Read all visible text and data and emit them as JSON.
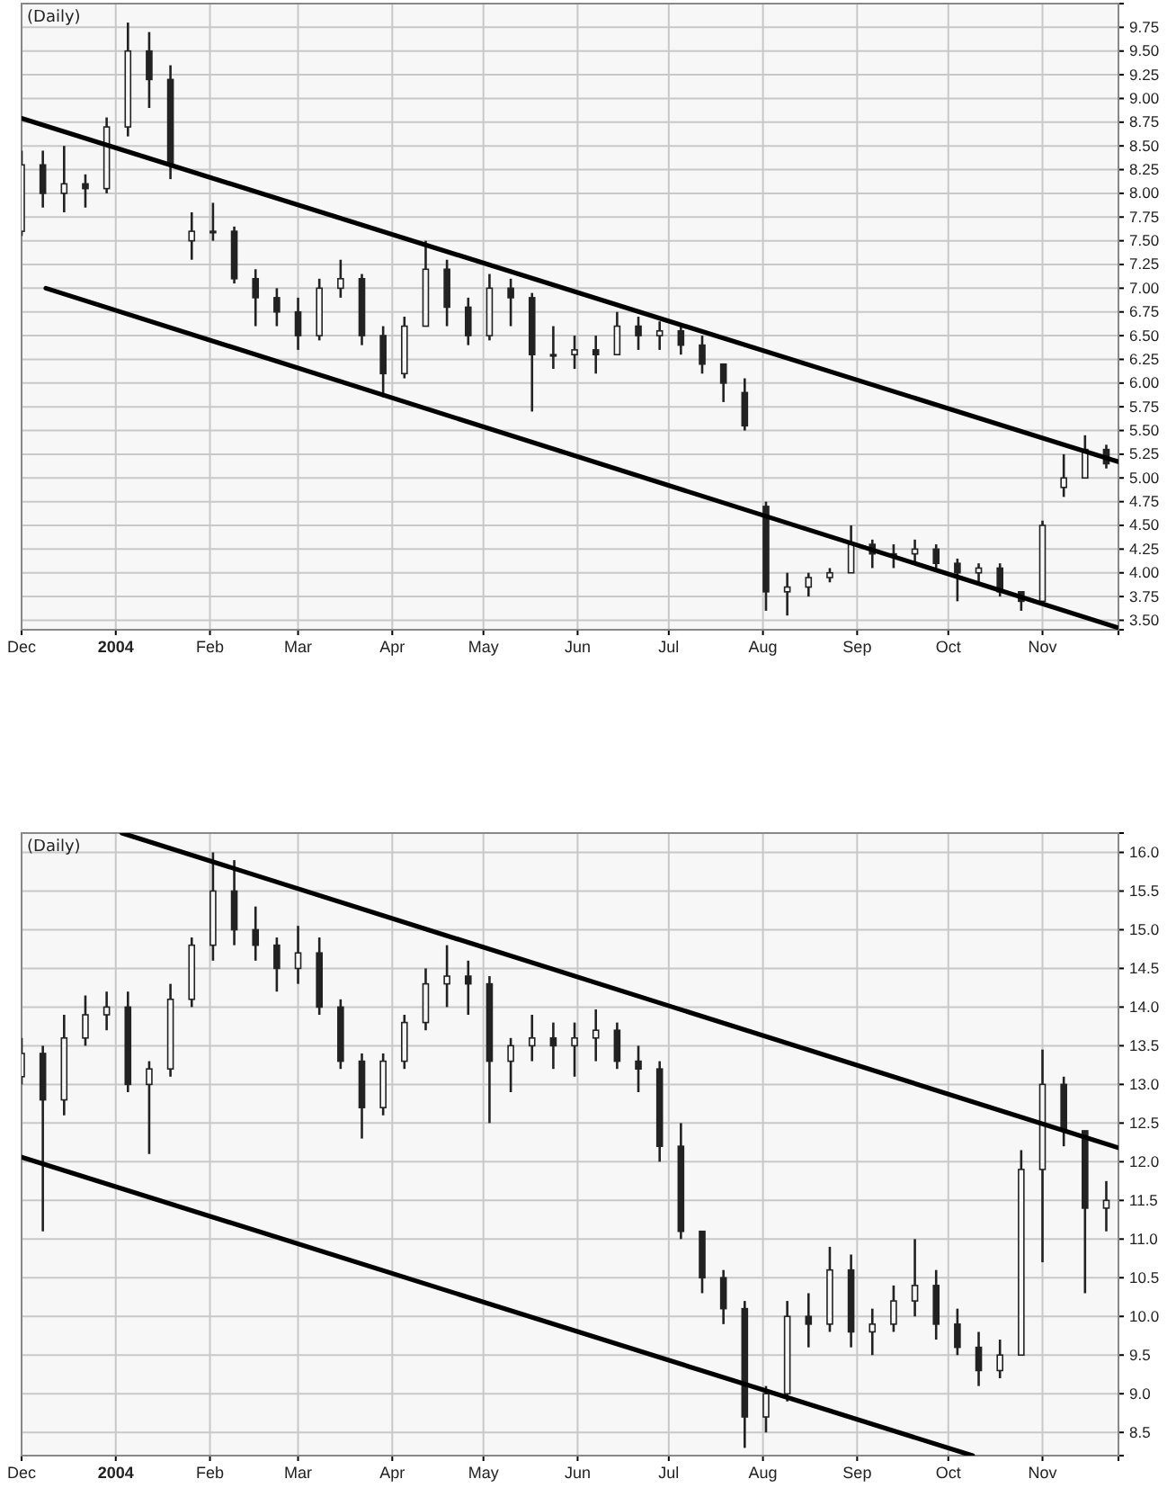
{
  "chart_data": [
    {
      "type": "candlestick",
      "title": "(Daily)",
      "grid": true,
      "xlim": [
        "2003-12-01",
        "2004-11-26"
      ],
      "ylim": [
        3.4,
        10.0
      ],
      "xticks": [
        {
          "value": "2003-12-01",
          "label": "Dec"
        },
        {
          "value": "2004-01-01",
          "label": "2004"
        },
        {
          "value": "2004-02-01",
          "label": "Feb"
        },
        {
          "value": "2004-03-01",
          "label": "Mar"
        },
        {
          "value": "2004-04-01",
          "label": "Apr"
        },
        {
          "value": "2004-05-01",
          "label": "May"
        },
        {
          "value": "2004-06-01",
          "label": "Jun"
        },
        {
          "value": "2004-07-01",
          "label": "Jul"
        },
        {
          "value": "2004-08-01",
          "label": "Aug"
        },
        {
          "value": "2004-09-01",
          "label": "Sep"
        },
        {
          "value": "2004-10-01",
          "label": "Oct"
        },
        {
          "value": "2004-11-01",
          "label": "Nov"
        }
      ],
      "yticks": [
        {
          "value": 3.5,
          "label": "3.50"
        },
        {
          "value": 3.75,
          "label": "3.75"
        },
        {
          "value": 4.0,
          "label": "4.00"
        },
        {
          "value": 4.25,
          "label": "4.25"
        },
        {
          "value": 4.5,
          "label": "4.50"
        },
        {
          "value": 4.75,
          "label": "4.75"
        },
        {
          "value": 5.0,
          "label": "5.00"
        },
        {
          "value": 5.25,
          "label": "5.25"
        },
        {
          "value": 5.5,
          "label": "5.50"
        },
        {
          "value": 5.75,
          "label": "5.75"
        },
        {
          "value": 6.0,
          "label": "6.00"
        },
        {
          "value": 6.25,
          "label": "6.25"
        },
        {
          "value": 6.5,
          "label": "6.50"
        },
        {
          "value": 6.75,
          "label": "6.75"
        },
        {
          "value": 7.0,
          "label": "7.00"
        },
        {
          "value": 7.25,
          "label": "7.25"
        },
        {
          "value": 7.5,
          "label": "7.50"
        },
        {
          "value": 7.75,
          "label": "7.75"
        },
        {
          "value": 8.0,
          "label": "8.00"
        },
        {
          "value": 8.25,
          "label": "8.25"
        },
        {
          "value": 8.5,
          "label": "8.50"
        },
        {
          "value": 8.75,
          "label": "8.75"
        },
        {
          "value": 9.0,
          "label": "9.00"
        },
        {
          "value": 9.25,
          "label": "9.25"
        },
        {
          "value": 9.5,
          "label": "9.50"
        },
        {
          "value": 9.75,
          "label": "9.75"
        }
      ],
      "x": [
        "2003-12-01",
        "2003-12-08",
        "2003-12-15",
        "2003-12-22",
        "2003-12-29",
        "2004-01-05",
        "2004-01-12",
        "2004-01-19",
        "2004-01-26",
        "2004-02-02",
        "2004-02-09",
        "2004-02-16",
        "2004-02-23",
        "2004-03-01",
        "2004-03-08",
        "2004-03-15",
        "2004-03-22",
        "2004-03-29",
        "2004-04-05",
        "2004-04-12",
        "2004-04-19",
        "2004-04-26",
        "2004-05-03",
        "2004-05-10",
        "2004-05-17",
        "2004-05-24",
        "2004-05-31",
        "2004-06-07",
        "2004-06-14",
        "2004-06-21",
        "2004-06-28",
        "2004-07-05",
        "2004-07-12",
        "2004-07-19",
        "2004-07-26",
        "2004-08-02",
        "2004-08-09",
        "2004-08-16",
        "2004-08-23",
        "2004-08-30",
        "2004-09-06",
        "2004-09-13",
        "2004-09-20",
        "2004-09-27",
        "2004-10-04",
        "2004-10-11",
        "2004-10-18",
        "2004-10-25",
        "2004-11-01",
        "2004-11-08",
        "2004-11-15",
        "2004-11-22"
      ],
      "ohlc": [
        [
          7.6,
          8.45,
          7.55,
          8.3
        ],
        [
          8.3,
          8.45,
          7.85,
          8.0
        ],
        [
          8.0,
          8.5,
          7.8,
          8.1
        ],
        [
          8.1,
          8.2,
          7.85,
          8.05
        ],
        [
          8.05,
          8.8,
          8.0,
          8.7
        ],
        [
          8.7,
          9.8,
          8.6,
          9.5
        ],
        [
          9.5,
          9.7,
          8.9,
          9.2
        ],
        [
          9.2,
          9.35,
          8.15,
          8.3
        ],
        [
          7.5,
          7.8,
          7.3,
          7.6
        ],
        [
          7.6,
          7.9,
          7.5,
          7.6
        ],
        [
          7.6,
          7.65,
          7.05,
          7.1
        ],
        [
          7.1,
          7.2,
          6.6,
          6.9
        ],
        [
          6.9,
          7.0,
          6.6,
          6.75
        ],
        [
          6.75,
          6.9,
          6.35,
          6.5
        ],
        [
          6.5,
          7.1,
          6.45,
          7.0
        ],
        [
          7.0,
          7.3,
          6.9,
          7.1
        ],
        [
          7.1,
          7.15,
          6.4,
          6.5
        ],
        [
          6.5,
          6.6,
          5.85,
          6.1
        ],
        [
          6.1,
          6.7,
          6.05,
          6.6
        ],
        [
          6.6,
          7.5,
          6.6,
          7.2
        ],
        [
          7.2,
          7.3,
          6.6,
          6.8
        ],
        [
          6.8,
          6.9,
          6.4,
          6.5
        ],
        [
          6.5,
          7.15,
          6.45,
          7.0
        ],
        [
          7.0,
          7.1,
          6.6,
          6.9
        ],
        [
          6.9,
          6.95,
          5.7,
          6.3
        ],
        [
          6.3,
          6.6,
          6.15,
          6.3
        ],
        [
          6.3,
          6.5,
          6.15,
          6.35
        ],
        [
          6.35,
          6.5,
          6.1,
          6.3
        ],
        [
          6.3,
          6.75,
          6.3,
          6.6
        ],
        [
          6.6,
          6.7,
          6.35,
          6.5
        ],
        [
          6.5,
          6.65,
          6.35,
          6.55
        ],
        [
          6.55,
          6.6,
          6.3,
          6.4
        ],
        [
          6.4,
          6.5,
          6.1,
          6.2
        ],
        [
          6.2,
          6.2,
          5.8,
          6.0
        ],
        [
          5.9,
          6.05,
          5.5,
          5.55
        ],
        [
          4.7,
          4.75,
          3.6,
          3.8
        ],
        [
          3.8,
          4.0,
          3.55,
          3.85
        ],
        [
          3.85,
          4.0,
          3.75,
          3.95
        ],
        [
          3.95,
          4.05,
          3.9,
          4.0
        ],
        [
          4.0,
          4.5,
          4.0,
          4.3
        ],
        [
          4.3,
          4.35,
          4.05,
          4.2
        ],
        [
          4.2,
          4.3,
          4.05,
          4.2
        ],
        [
          4.2,
          4.35,
          4.1,
          4.25
        ],
        [
          4.25,
          4.3,
          4.05,
          4.1
        ],
        [
          4.1,
          4.15,
          3.7,
          4.0
        ],
        [
          4.0,
          4.1,
          3.9,
          4.05
        ],
        [
          4.05,
          4.1,
          3.75,
          3.8
        ],
        [
          3.8,
          3.8,
          3.6,
          3.7
        ],
        [
          3.7,
          4.55,
          3.7,
          4.5
        ],
        [
          4.9,
          5.25,
          4.8,
          5.0
        ],
        [
          5.0,
          5.45,
          5.0,
          5.3
        ],
        [
          5.3,
          5.35,
          5.1,
          5.15
        ]
      ],
      "series": [
        {
          "type": "line",
          "color": "#000000",
          "x": [
            "2003-12-01",
            "2004-11-26"
          ],
          "values": [
            8.79,
            5.17
          ]
        },
        {
          "type": "line",
          "color": "#000000",
          "x": [
            "2003-12-09",
            "2004-11-26"
          ],
          "values": [
            7.0,
            3.42
          ]
        }
      ]
    },
    {
      "type": "candlestick",
      "title": "(Daily)",
      "grid": true,
      "xlim": [
        "2003-12-01",
        "2004-11-26"
      ],
      "ylim": [
        8.2,
        16.25
      ],
      "xticks": [
        {
          "value": "2003-12-01",
          "label": "Dec"
        },
        {
          "value": "2004-01-01",
          "label": "2004"
        },
        {
          "value": "2004-02-01",
          "label": "Feb"
        },
        {
          "value": "2004-03-01",
          "label": "Mar"
        },
        {
          "value": "2004-04-01",
          "label": "Apr"
        },
        {
          "value": "2004-05-01",
          "label": "May"
        },
        {
          "value": "2004-06-01",
          "label": "Jun"
        },
        {
          "value": "2004-07-01",
          "label": "Jul"
        },
        {
          "value": "2004-08-01",
          "label": "Aug"
        },
        {
          "value": "2004-09-01",
          "label": "Sep"
        },
        {
          "value": "2004-10-01",
          "label": "Oct"
        },
        {
          "value": "2004-11-01",
          "label": "Nov"
        }
      ],
      "yticks": [
        {
          "value": 8.5,
          "label": "8.5"
        },
        {
          "value": 9.0,
          "label": "9.0"
        },
        {
          "value": 9.5,
          "label": "9.5"
        },
        {
          "value": 10.0,
          "label": "10.0"
        },
        {
          "value": 10.5,
          "label": "10.5"
        },
        {
          "value": 11.0,
          "label": "11.0"
        },
        {
          "value": 11.5,
          "label": "11.5"
        },
        {
          "value": 12.0,
          "label": "12.0"
        },
        {
          "value": 12.5,
          "label": "12.5"
        },
        {
          "value": 13.0,
          "label": "13.0"
        },
        {
          "value": 13.5,
          "label": "13.5"
        },
        {
          "value": 14.0,
          "label": "14.0"
        },
        {
          "value": 14.5,
          "label": "14.5"
        },
        {
          "value": 15.0,
          "label": "15.0"
        },
        {
          "value": 15.5,
          "label": "15.5"
        },
        {
          "value": 16.0,
          "label": "16.0"
        }
      ],
      "x": [
        "2003-12-01",
        "2003-12-08",
        "2003-12-15",
        "2003-12-22",
        "2003-12-29",
        "2004-01-05",
        "2004-01-12",
        "2004-01-19",
        "2004-01-26",
        "2004-02-02",
        "2004-02-09",
        "2004-02-16",
        "2004-02-23",
        "2004-03-01",
        "2004-03-08",
        "2004-03-15",
        "2004-03-22",
        "2004-03-29",
        "2004-04-05",
        "2004-04-12",
        "2004-04-19",
        "2004-04-26",
        "2004-05-03",
        "2004-05-10",
        "2004-05-17",
        "2004-05-24",
        "2004-05-31",
        "2004-06-07",
        "2004-06-14",
        "2004-06-21",
        "2004-06-28",
        "2004-07-05",
        "2004-07-12",
        "2004-07-19",
        "2004-07-26",
        "2004-08-02",
        "2004-08-09",
        "2004-08-16",
        "2004-08-23",
        "2004-08-30",
        "2004-09-06",
        "2004-09-13",
        "2004-09-20",
        "2004-09-27",
        "2004-10-04",
        "2004-10-11",
        "2004-10-18",
        "2004-10-25",
        "2004-11-01",
        "2004-11-08",
        "2004-11-15",
        "2004-11-22"
      ],
      "ohlc": [
        [
          13.1,
          13.6,
          13.0,
          13.4
        ],
        [
          13.4,
          13.5,
          11.1,
          12.8
        ],
        [
          12.8,
          13.9,
          12.6,
          13.6
        ],
        [
          13.6,
          14.15,
          13.5,
          13.9
        ],
        [
          13.9,
          14.2,
          13.7,
          14.0
        ],
        [
          14.0,
          14.2,
          12.9,
          13.0
        ],
        [
          13.0,
          13.3,
          12.1,
          13.2
        ],
        [
          13.2,
          14.3,
          13.1,
          14.1
        ],
        [
          14.1,
          14.9,
          14.0,
          14.8
        ],
        [
          14.8,
          16.0,
          14.6,
          15.5
        ],
        [
          15.5,
          15.9,
          14.8,
          15.0
        ],
        [
          15.0,
          15.3,
          14.6,
          14.8
        ],
        [
          14.8,
          14.9,
          14.2,
          14.5
        ],
        [
          14.5,
          15.05,
          14.3,
          14.7
        ],
        [
          14.7,
          14.9,
          13.9,
          14.0
        ],
        [
          14.0,
          14.1,
          13.2,
          13.3
        ],
        [
          13.3,
          13.4,
          12.3,
          12.7
        ],
        [
          12.7,
          13.4,
          12.6,
          13.3
        ],
        [
          13.3,
          13.9,
          13.2,
          13.8
        ],
        [
          13.8,
          14.5,
          13.7,
          14.3
        ],
        [
          14.3,
          14.8,
          14.0,
          14.4
        ],
        [
          14.4,
          14.6,
          13.9,
          14.3
        ],
        [
          14.3,
          14.4,
          12.5,
          13.3
        ],
        [
          13.3,
          13.6,
          12.9,
          13.5
        ],
        [
          13.5,
          13.9,
          13.3,
          13.6
        ],
        [
          13.6,
          13.8,
          13.2,
          13.5
        ],
        [
          13.5,
          13.8,
          13.1,
          13.6
        ],
        [
          13.6,
          13.97,
          13.3,
          13.7
        ],
        [
          13.7,
          13.8,
          13.2,
          13.3
        ],
        [
          13.3,
          13.5,
          12.9,
          13.2
        ],
        [
          13.2,
          13.3,
          12.0,
          12.2
        ],
        [
          12.2,
          12.5,
          11.0,
          11.1
        ],
        [
          11.1,
          11.1,
          10.3,
          10.5
        ],
        [
          10.5,
          10.6,
          9.9,
          10.1
        ],
        [
          10.1,
          10.2,
          8.3,
          8.7
        ],
        [
          8.7,
          9.1,
          8.5,
          9.0
        ],
        [
          9.0,
          10.2,
          8.9,
          10.0
        ],
        [
          10.0,
          10.3,
          9.6,
          9.9
        ],
        [
          9.9,
          10.9,
          9.8,
          10.6
        ],
        [
          10.6,
          10.8,
          9.6,
          9.8
        ],
        [
          9.8,
          10.1,
          9.5,
          9.9
        ],
        [
          9.9,
          10.4,
          9.8,
          10.2
        ],
        [
          10.2,
          11.0,
          10.0,
          10.4
        ],
        [
          10.4,
          10.6,
          9.7,
          9.9
        ],
        [
          9.9,
          10.1,
          9.5,
          9.6
        ],
        [
          9.6,
          9.8,
          9.1,
          9.3
        ],
        [
          9.3,
          9.7,
          9.2,
          9.5
        ],
        [
          9.5,
          12.15,
          9.5,
          11.9
        ],
        [
          11.9,
          13.45,
          10.7,
          13.0
        ],
        [
          13.0,
          13.1,
          12.2,
          12.4
        ],
        [
          12.4,
          12.4,
          10.3,
          11.4
        ],
        [
          11.4,
          11.75,
          11.1,
          11.5
        ]
      ],
      "series": [
        {
          "type": "line",
          "color": "#000000",
          "x": [
            "2004-01-03",
            "2004-11-26"
          ],
          "values": [
            16.25,
            12.18
          ]
        },
        {
          "type": "line",
          "color": "#000000",
          "x": [
            "2003-12-01",
            "2004-10-09"
          ],
          "values": [
            12.06,
            8.2
          ]
        }
      ]
    }
  ]
}
